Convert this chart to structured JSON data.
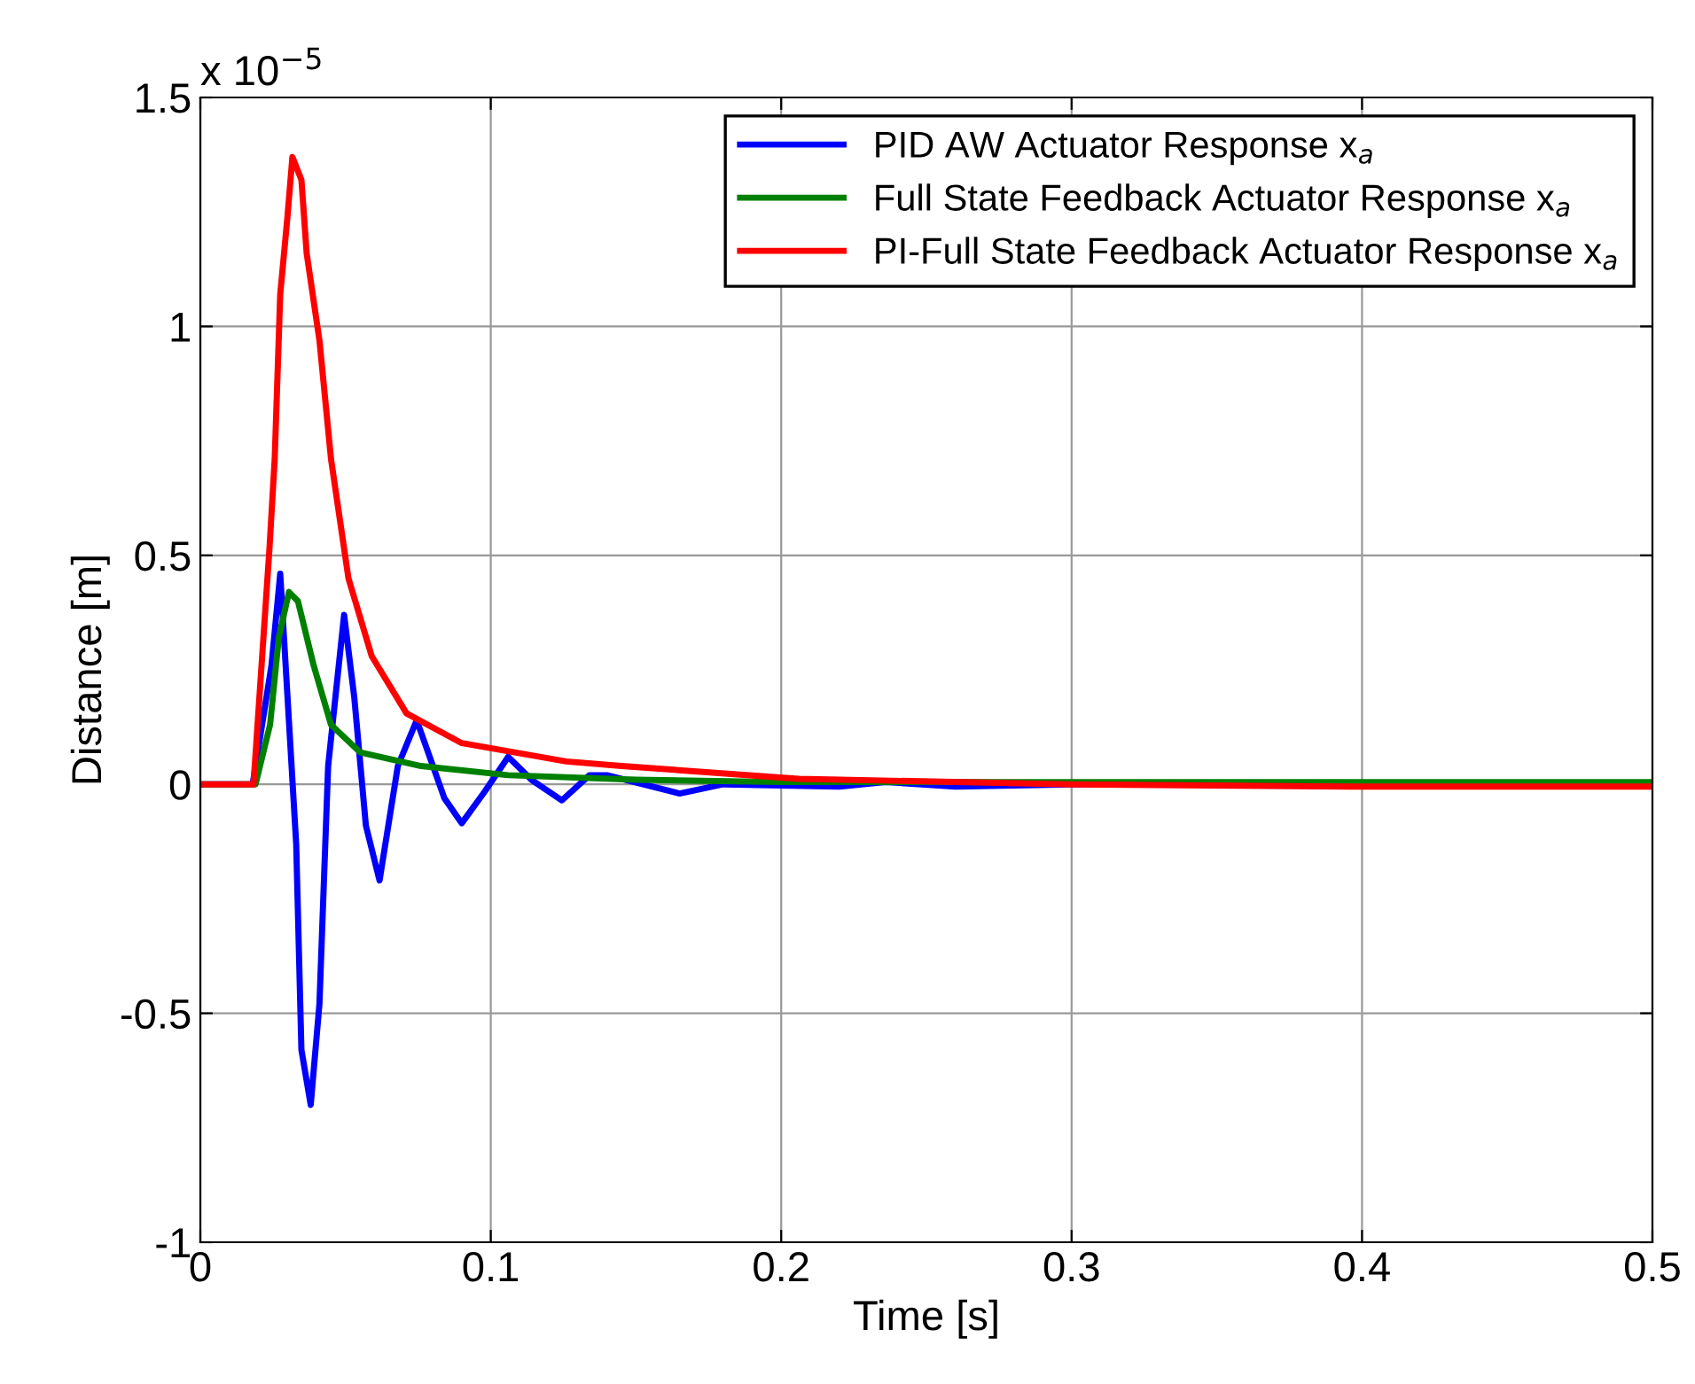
{
  "chart_data": {
    "type": "line",
    "xlabel": "Time [s]",
    "ylabel": "Distance [m]",
    "annotations": [
      "x 10$^{−5}$"
    ],
    "xlim": [
      0,
      0.5
    ],
    "ylim": [
      -1,
      1.5
    ],
    "xticks": [
      0,
      0.1,
      0.2,
      0.3,
      0.4,
      0.5
    ],
    "yticks": [
      {
        "value": -1,
        "label": "-1"
      },
      {
        "value": -0.5,
        "label": "-0.5"
      },
      0,
      0.5,
      1,
      1.5
    ],
    "grid": true,
    "legend": "top right",
    "marker": "none",
    "line_style": "solid",
    "series": [
      {
        "name": "PID AW Actuator Response x$_{a}$",
        "color": "#0000ff",
        "x": [
          0,
          0.018,
          0.0245,
          0.0275,
          0.033,
          0.0348,
          0.038,
          0.041,
          0.044,
          0.0495,
          0.053,
          0.057,
          0.0617,
          0.068,
          0.0745,
          0.084,
          0.09,
          0.098,
          0.106,
          0.114,
          0.1245,
          0.134,
          0.14,
          0.165,
          0.18,
          0.22,
          0.236,
          0.26,
          0.3,
          0.4,
          0.5
        ],
        "values": [
          0,
          0,
          0.26,
          0.46,
          -0.13,
          -0.58,
          -0.7,
          -0.48,
          0.04,
          0.37,
          0.19,
          -0.09,
          -0.21,
          0.04,
          0.14,
          -0.03,
          -0.085,
          -0.015,
          0.06,
          0.01,
          -0.035,
          0.02,
          0.02,
          -0.02,
          0,
          -0.005,
          0.005,
          -0.005,
          0,
          0,
          0
        ]
      },
      {
        "name": "Full State Feedback Actuator Response x$_{a}$",
        "color": "#008000",
        "x": [
          0,
          0.019,
          0.024,
          0.027,
          0.0305,
          0.0336,
          0.039,
          0.045,
          0.055,
          0.076,
          0.106,
          0.15,
          0.2,
          0.3,
          0.4,
          0.5
        ],
        "values": [
          0,
          0,
          0.13,
          0.32,
          0.42,
          0.4,
          0.26,
          0.13,
          0.07,
          0.04,
          0.02,
          0.01,
          0.005,
          0.005,
          0.005,
          0.005
        ]
      },
      {
        "name": "PI-Full State Feedback Actuator Response x$_{a}$",
        "color": "#ff0000",
        "x": [
          0,
          0.0183,
          0.0238,
          0.0256,
          0.0275,
          0.03,
          0.0317,
          0.0348,
          0.0366,
          0.041,
          0.045,
          0.051,
          0.059,
          0.071,
          0.09,
          0.126,
          0.145,
          0.206,
          0.3,
          0.4,
          0.5
        ],
        "values": [
          0,
          0,
          0.515,
          0.71,
          1.07,
          1.24,
          1.37,
          1.32,
          1.16,
          0.97,
          0.71,
          0.45,
          0.28,
          0.155,
          0.09,
          0.05,
          0.04,
          0.012,
          0,
          -0.005,
          -0.005
        ]
      }
    ]
  }
}
